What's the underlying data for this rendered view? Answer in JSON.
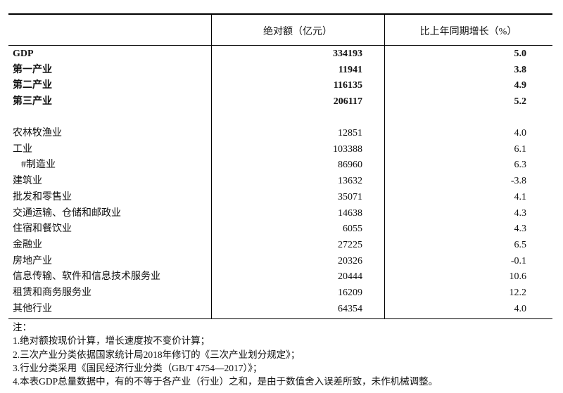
{
  "table": {
    "headers": {
      "label": "",
      "absolute": "绝对额（亿元）",
      "growth": "比上年同期增长（%）"
    },
    "summary_rows": [
      {
        "label": "GDP",
        "absolute": "334193",
        "growth": "5.0"
      },
      {
        "label": "第一产业",
        "absolute": "11941",
        "growth": "3.8"
      },
      {
        "label": "第二产业",
        "absolute": "116135",
        "growth": "4.9"
      },
      {
        "label": "第三产业",
        "absolute": "206117",
        "growth": "5.2"
      }
    ],
    "industry_rows": [
      {
        "label": "农林牧渔业",
        "absolute": "12851",
        "growth": "4.0"
      },
      {
        "label": "工业",
        "absolute": "103388",
        "growth": "6.1"
      },
      {
        "label": "#制造业",
        "absolute": "86960",
        "growth": "6.3"
      },
      {
        "label": "建筑业",
        "absolute": "13632",
        "growth": "-3.8"
      },
      {
        "label": "批发和零售业",
        "absolute": "35071",
        "growth": "4.1"
      },
      {
        "label": "交通运输、仓储和邮政业",
        "absolute": "14638",
        "growth": "4.3"
      },
      {
        "label": "住宿和餐饮业",
        "absolute": "6055",
        "growth": "4.3"
      },
      {
        "label": "金融业",
        "absolute": "27225",
        "growth": "6.5"
      },
      {
        "label": "房地产业",
        "absolute": "20326",
        "growth": "-0.1"
      },
      {
        "label": "信息传输、软件和信息技术服务业",
        "absolute": "20444",
        "growth": "10.6"
      },
      {
        "label": "租赁和商务服务业",
        "absolute": "16209",
        "growth": "12.2"
      },
      {
        "label": "其他行业",
        "absolute": "64354",
        "growth": "4.0"
      }
    ]
  },
  "notes": {
    "title": "注：",
    "items": [
      "1.绝对额按现价计算，增长速度按不变价计算；",
      "2.三次产业分类依据国家统计局2018年修订的《三次产业划分规定》；",
      "3.行业分类采用《国民经济行业分类（GB/T 4754—2017）》；",
      "4.本表GDP总量数据中，有的不等于各产业（行业）之和，是由于数值舍入误差所致，未作机械调整。"
    ]
  }
}
